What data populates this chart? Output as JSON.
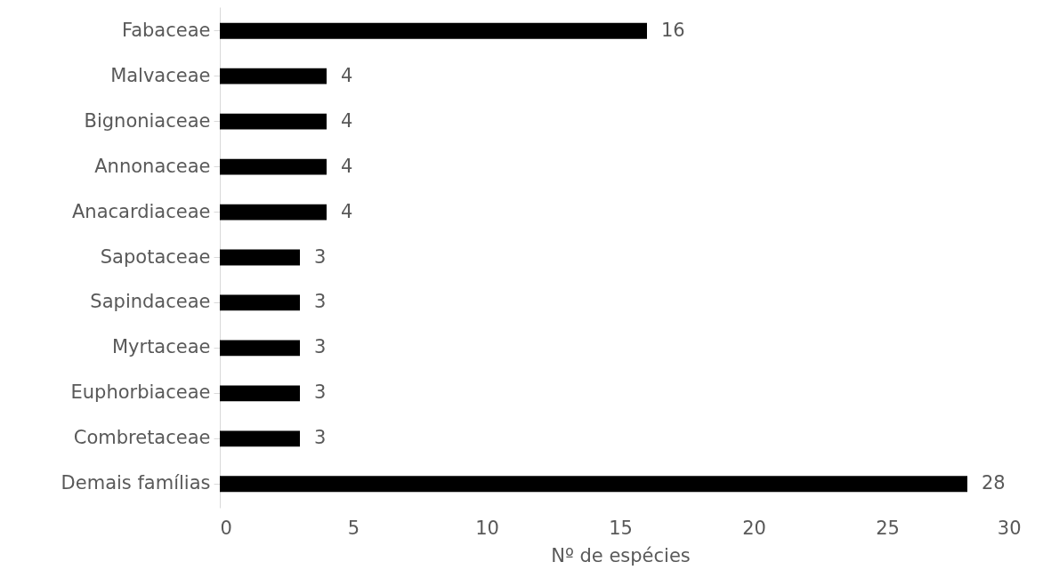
{
  "chart_data": {
    "type": "bar",
    "orientation": "horizontal",
    "xlabel": "Nº de espécies",
    "categories": [
      "Fabaceae",
      "Malvaceae",
      "Bignoniaceae",
      "Annonaceae",
      "Anacardiaceae",
      "Sapotaceae",
      "Sapindaceae",
      "Myrtaceae",
      "Euphorbiaceae",
      "Combretaceae",
      "Demais famílias"
    ],
    "values": [
      16,
      4,
      4,
      4,
      4,
      3,
      3,
      3,
      3,
      3,
      28
    ],
    "color": "#000000",
    "xlim": [
      0,
      30
    ],
    "xticks": [
      0,
      5,
      10,
      15,
      20,
      25,
      30
    ],
    "data_labels": true,
    "grid": false
  }
}
